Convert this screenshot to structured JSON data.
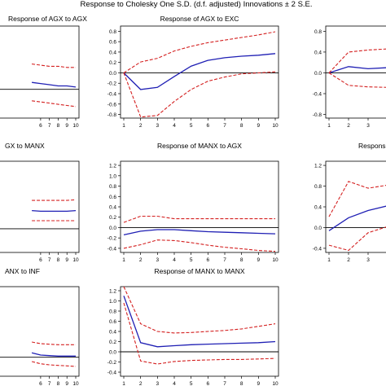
{
  "figure_title": "Response to Cholesky One S.D. (d.f. adjusted) Innovations ± 2 S.E.",
  "colors": {
    "response": "#1f1fb4",
    "bands": "#d42020",
    "axis": "#000000"
  },
  "chart_data": [
    {
      "type": "line",
      "title": "Response of AGX to AGX",
      "x": [
        1,
        2,
        3,
        4,
        5,
        6,
        7,
        8,
        9,
        10
      ],
      "visible_x": [
        6,
        7,
        8,
        9,
        10
      ],
      "xticks": [
        "6",
        "7",
        "8",
        "9",
        "10"
      ],
      "yticks": [],
      "series": [
        {
          "values": [
            null,
            null,
            null,
            null,
            0.06,
            0.05,
            0.04,
            0.03,
            0.03,
            0.02
          ]
        },
        {
          "values": [
            null,
            null,
            null,
            null,
            0.22,
            0.21,
            0.2,
            0.2,
            0.19,
            0.19
          ]
        },
        {
          "values": [
            null,
            null,
            null,
            null,
            -0.1,
            -0.11,
            -0.12,
            -0.13,
            -0.14,
            -0.15
          ]
        }
      ]
    },
    {
      "type": "line",
      "title": "Response of AGX to EXC",
      "x": [
        1,
        2,
        3,
        4,
        5,
        6,
        7,
        8,
        9,
        10
      ],
      "xticks": [
        "1",
        "2",
        "3",
        "4",
        "5",
        "6",
        "7",
        "8",
        "9",
        "10"
      ],
      "yticks": [
        "0.8",
        "0.6",
        "0.4",
        "0.2",
        "0.0",
        "-0.2",
        "-0.4",
        "-0.6",
        "-0.8"
      ],
      "ylim": [
        -0.87,
        0.9
      ],
      "series": [
        {
          "values": [
            0.0,
            -0.32,
            -0.28,
            -0.07,
            0.13,
            0.24,
            0.29,
            0.32,
            0.34,
            0.37
          ]
        },
        {
          "values": [
            0.0,
            0.21,
            0.28,
            0.42,
            0.51,
            0.58,
            0.63,
            0.68,
            0.73,
            0.79
          ]
        },
        {
          "values": [
            0.0,
            -0.85,
            -0.82,
            -0.55,
            -0.32,
            -0.16,
            -0.08,
            -0.02,
            0.0,
            0.02
          ]
        }
      ]
    },
    {
      "type": "line",
      "title": "",
      "x": [
        1,
        2,
        3,
        4
      ],
      "xticks": [
        "1",
        "2",
        "3",
        "4"
      ],
      "yticks": [
        "0.8",
        "0.4",
        "0.0",
        "-0.4",
        "-0.8"
      ],
      "ylim": [
        -0.87,
        0.9
      ],
      "series": [
        {
          "values": [
            0.0,
            0.12,
            0.08,
            0.1
          ]
        },
        {
          "values": [
            0.0,
            0.4,
            0.44,
            0.46
          ]
        },
        {
          "values": [
            0.0,
            -0.24,
            -0.27,
            -0.28
          ]
        }
      ]
    },
    {
      "type": "line",
      "title": "GX to MANX",
      "x": [
        1,
        2,
        3,
        4,
        5,
        6,
        7,
        8,
        9,
        10
      ],
      "visible_x": [
        6,
        7,
        8,
        9,
        10
      ],
      "xticks": [
        "6",
        "7",
        "8",
        "9",
        "10"
      ],
      "yticks": [],
      "series": [
        {
          "values": [
            null,
            null,
            null,
            null,
            0.27,
            0.26,
            0.26,
            0.26,
            0.26,
            0.27
          ]
        },
        {
          "values": [
            null,
            null,
            null,
            null,
            0.42,
            0.42,
            0.42,
            0.42,
            0.42,
            0.43
          ]
        },
        {
          "values": [
            null,
            null,
            null,
            null,
            0.12,
            0.12,
            0.12,
            0.12,
            0.12,
            0.12
          ]
        }
      ]
    },
    {
      "type": "line",
      "title": "Response of MANX to AGX",
      "x": [
        1,
        2,
        3,
        4,
        5,
        6,
        7,
        8,
        9,
        10
      ],
      "xticks": [
        "1",
        "2",
        "3",
        "4",
        "5",
        "6",
        "7",
        "8",
        "9",
        "10"
      ],
      "yticks": [
        "1.2",
        "1.0",
        "0.8",
        "0.6",
        "0.4",
        "0.2",
        "0.0",
        "-0.2",
        "-0.4"
      ],
      "ylim": [
        -0.48,
        1.28
      ],
      "series": [
        {
          "values": [
            -0.14,
            -0.07,
            -0.04,
            -0.04,
            -0.06,
            -0.08,
            -0.09,
            -0.1,
            -0.11,
            -0.12
          ]
        },
        {
          "values": [
            0.1,
            0.22,
            0.22,
            0.17,
            0.17,
            0.17,
            0.17,
            0.17,
            0.17,
            0.17
          ]
        },
        {
          "values": [
            -0.4,
            -0.33,
            -0.24,
            -0.25,
            -0.29,
            -0.34,
            -0.38,
            -0.41,
            -0.44,
            -0.46
          ]
        }
      ]
    },
    {
      "type": "line",
      "title": "Respons",
      "x": [
        1,
        2,
        3,
        4
      ],
      "xticks": [
        "1",
        "2",
        "3",
        "4"
      ],
      "yticks": [
        "1.2",
        "0.8",
        "0.4",
        "0.0",
        "-0.4"
      ],
      "ylim": [
        -0.48,
        1.28
      ],
      "series": [
        {
          "values": [
            -0.06,
            0.19,
            0.33,
            0.42
          ]
        },
        {
          "values": [
            0.21,
            0.89,
            0.76,
            0.82
          ]
        },
        {
          "values": [
            -0.34,
            -0.44,
            -0.1,
            0.02
          ]
        }
      ]
    },
    {
      "type": "line",
      "title": "ANX to INF",
      "x": [
        1,
        2,
        3,
        4,
        5,
        6,
        7,
        8,
        9,
        10
      ],
      "visible_x": [
        6,
        7,
        8,
        9,
        10
      ],
      "xticks": [
        "6",
        "7",
        "8",
        "9",
        "10"
      ],
      "yticks": [],
      "series": [
        {
          "values": [
            null,
            null,
            null,
            null,
            0.08,
            0.04,
            0.03,
            0.02,
            0.02,
            0.02
          ]
        },
        {
          "values": [
            null,
            null,
            null,
            null,
            0.28,
            0.25,
            0.24,
            0.23,
            0.23,
            0.23
          ]
        },
        {
          "values": [
            null,
            null,
            null,
            null,
            -0.08,
            -0.12,
            -0.14,
            -0.15,
            -0.16,
            -0.17
          ]
        }
      ]
    },
    {
      "type": "line",
      "title": "Response of MANX to MANX",
      "x": [
        1,
        2,
        3,
        4,
        5,
        6,
        7,
        8,
        9,
        10
      ],
      "xticks": [
        "1",
        "2",
        "3",
        "4",
        "5",
        "6",
        "7",
        "8",
        "9",
        "10"
      ],
      "yticks": [
        "1.2",
        "1.0",
        "0.8",
        "0.6",
        "0.4",
        "0.2",
        "0.0",
        "-0.2",
        "-0.4"
      ],
      "ylim": [
        -0.48,
        1.28
      ],
      "series": [
        {
          "values": [
            1.1,
            0.18,
            0.1,
            0.12,
            0.14,
            0.15,
            0.16,
            0.17,
            0.18,
            0.2
          ]
        },
        {
          "values": [
            1.28,
            0.55,
            0.4,
            0.37,
            0.38,
            0.4,
            0.42,
            0.45,
            0.5,
            0.55
          ]
        },
        {
          "values": [
            0.96,
            -0.18,
            -0.24,
            -0.19,
            -0.17,
            -0.16,
            -0.15,
            -0.15,
            -0.14,
            -0.13
          ]
        }
      ]
    }
  ]
}
